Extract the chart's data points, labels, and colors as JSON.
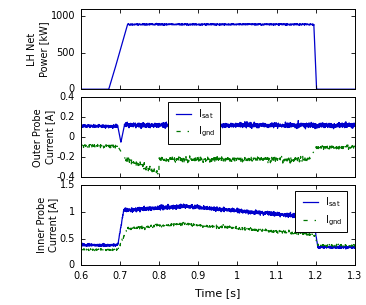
{
  "xlim": [
    0.6,
    1.3
  ],
  "xticks": [
    0.6,
    0.7,
    0.8,
    0.9,
    1.0,
    1.1,
    1.2,
    1.3
  ],
  "xlabel": "Time [s]",
  "panel1": {
    "ylabel": "LH Net\nPower [kW]",
    "ylim": [
      0,
      1100
    ],
    "yticks": [
      0,
      500,
      1000
    ],
    "color": "#0000cc"
  },
  "panel2": {
    "ylabel": "Outer Probe\nCurrent [A]",
    "ylim": [
      -0.4,
      0.4
    ],
    "yticks": [
      -0.4,
      -0.2,
      0,
      0.2,
      0.4
    ],
    "color_sat": "#0000cc",
    "color_gnd": "#007700"
  },
  "panel3": {
    "ylabel": "Inner Probe\nCurrent [A]",
    "ylim": [
      0,
      1.5
    ],
    "yticks": [
      0,
      0.5,
      1.0,
      1.5
    ],
    "color_sat": "#0000cc",
    "color_gnd": "#007700"
  },
  "figsize": [
    3.66,
    3.05
  ],
  "dpi": 100
}
